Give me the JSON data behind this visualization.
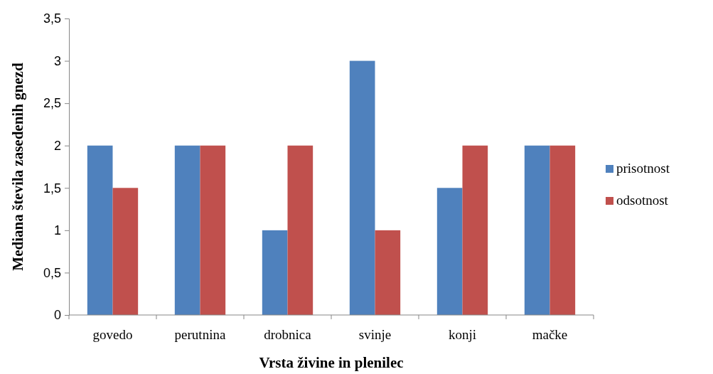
{
  "chart_data": {
    "type": "bar",
    "xlabel": "Vrsta živine in plenilec",
    "ylabel": "Mediana števila zasedenih gnezd",
    "categories": [
      "govedo",
      "perutnina",
      "drobnica",
      "svinje",
      "konji",
      "mačke"
    ],
    "series": [
      {
        "name": "prisotnost",
        "color": "#4f81bd",
        "values": [
          2,
          2,
          1,
          3,
          1.5,
          2
        ]
      },
      {
        "name": "odsotnost",
        "color": "#c0504d",
        "values": [
          1.5,
          2,
          2,
          1,
          2,
          2
        ]
      }
    ],
    "ylim": [
      0,
      3.5
    ],
    "yticks": [
      0,
      {
        "value": 0.5,
        "label": "0,5"
      },
      1,
      {
        "value": 1.5,
        "label": "1,5"
      },
      2,
      {
        "value": 2.5,
        "label": "2,5"
      },
      3,
      {
        "value": 3.5,
        "label": "3,5"
      }
    ],
    "grid": false,
    "legend": "right"
  }
}
